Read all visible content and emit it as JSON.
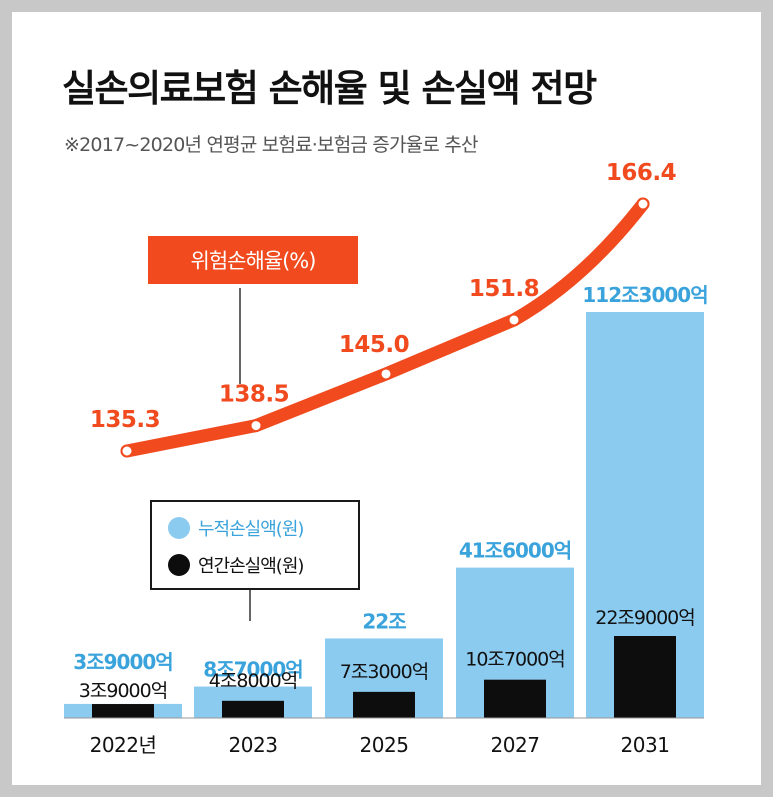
{
  "title": "실손의료보험 손해율 및 손실액 전망",
  "subtitle": "※2017~2020년 연평균 보험료·보험금 증가율로 추산",
  "colors": {
    "cumulative": "#8ccbf0",
    "cumulative_label": "#3aa3dc",
    "annual": "#0d0d0d",
    "loss_ratio": "#f04a1e"
  },
  "legend": {
    "loss_ratio": "위험손해율(%)",
    "cumulative": "누적손실액(원)",
    "annual": "연간손실액(원)"
  },
  "chart_data": {
    "type": "bar",
    "categories": [
      "2022년",
      "2023",
      "2025",
      "2027",
      "2031"
    ],
    "series": [
      {
        "name": "누적손실액(원)",
        "type": "bar",
        "values_eok": [
          39000,
          87000,
          220000,
          416000,
          1123000
        ],
        "labels": [
          "3조9000억",
          "8조7000억",
          "22조",
          "41조6000억",
          "112조3000억"
        ]
      },
      {
        "name": "연간손실액(원)",
        "type": "bar",
        "values_eok": [
          39000,
          48000,
          73000,
          107000,
          229000
        ],
        "labels": [
          "3조9000억",
          "4조8000억",
          "7조3000억",
          "10조7000억",
          "22조9000억"
        ]
      },
      {
        "name": "위험손해율(%)",
        "type": "line",
        "values": [
          135.3,
          138.5,
          145.0,
          151.8,
          166.4
        ],
        "labels": [
          "135.3",
          "138.5",
          "145.0",
          "151.8",
          "166.4"
        ]
      }
    ]
  }
}
